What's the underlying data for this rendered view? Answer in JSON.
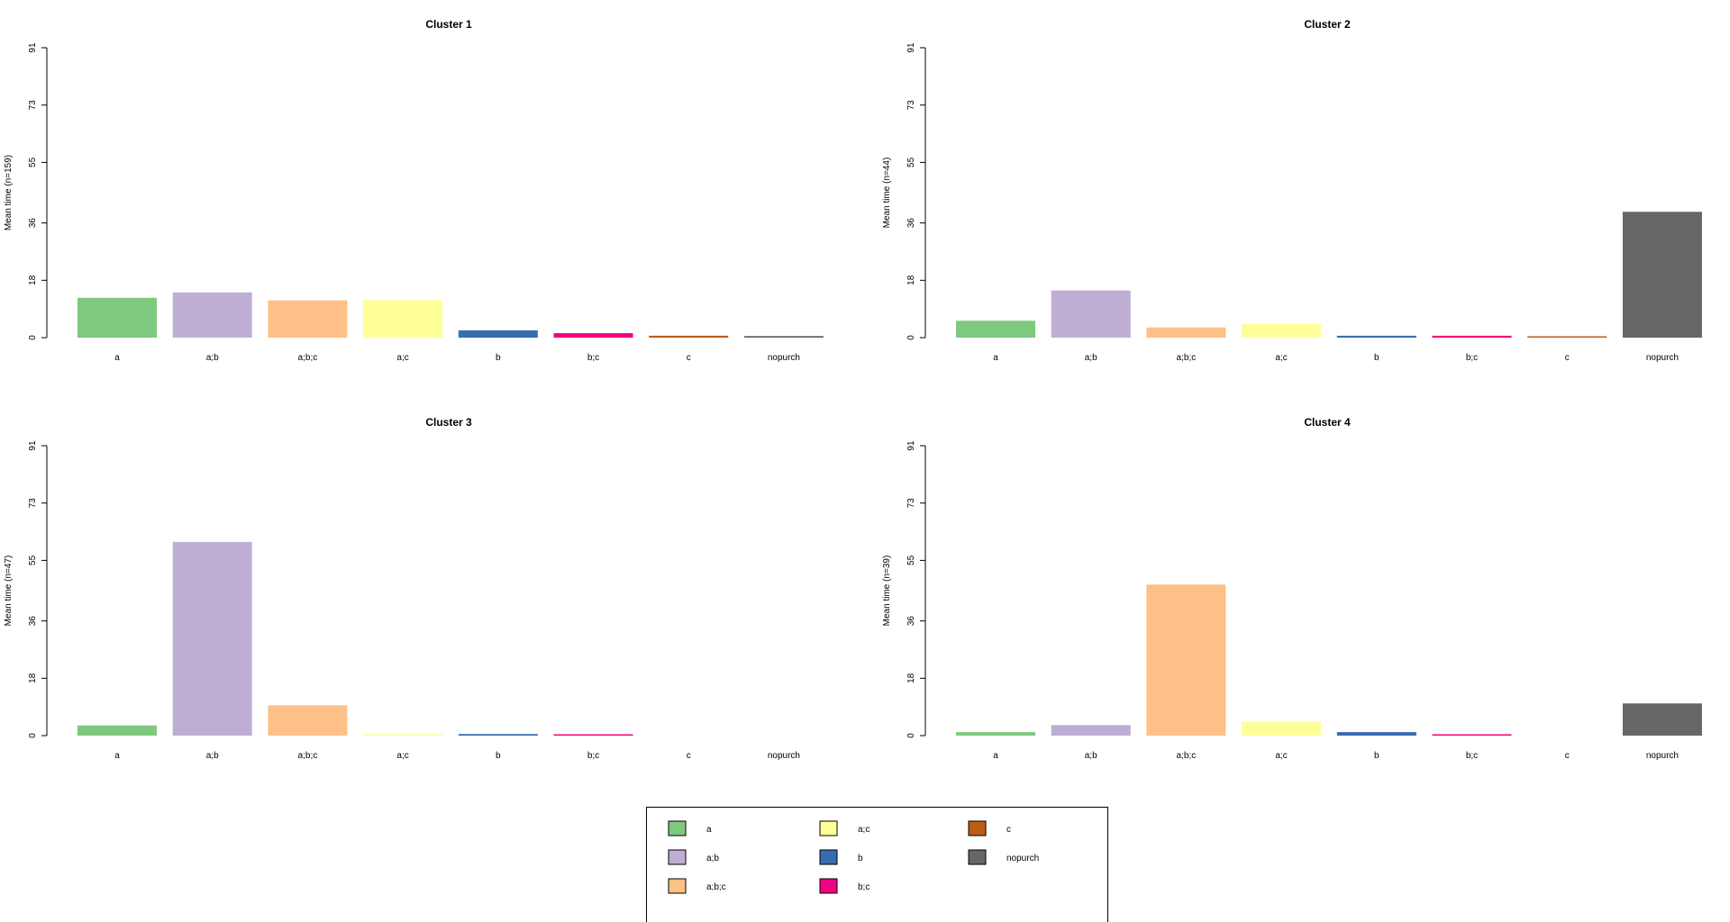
{
  "chart_data": [
    {
      "type": "bar",
      "title": "Cluster 1",
      "ylabel": "Mean time (n=159)",
      "xlabel": "",
      "ylim": [
        0,
        91
      ],
      "yticks": [
        "0",
        "18",
        "36",
        "55",
        "73",
        "91"
      ],
      "categories": [
        "a",
        "a;b",
        "a;b;c",
        "a;c",
        "b",
        "b;c",
        "c",
        "nopurch"
      ],
      "values": [
        12.5,
        14.2,
        11.7,
        11.8,
        2.3,
        1.4,
        0.6,
        0.5
      ]
    },
    {
      "type": "bar",
      "title": "Cluster 2",
      "ylabel": "Mean time (n=44)",
      "xlabel": "",
      "ylim": [
        0,
        91
      ],
      "yticks": [
        "0",
        "18",
        "36",
        "55",
        "73",
        "91"
      ],
      "categories": [
        "a",
        "a;b",
        "a;b;c",
        "a;c",
        "b",
        "b;c",
        "c",
        "nopurch"
      ],
      "values": [
        5.3,
        14.8,
        3.2,
        4.4,
        0.6,
        0.6,
        0.4,
        39.5
      ]
    },
    {
      "type": "bar",
      "title": "Cluster 3",
      "ylabel": "Mean time (n=47)",
      "xlabel": "",
      "ylim": [
        0,
        91
      ],
      "yticks": [
        "0",
        "18",
        "36",
        "55",
        "73",
        "91"
      ],
      "categories": [
        "a",
        "a;b",
        "a;b;c",
        "a;c",
        "b",
        "b;c",
        "c",
        "nopurch"
      ],
      "values": [
        3.2,
        60.8,
        9.5,
        0.4,
        0.5,
        0.4,
        0,
        0
      ]
    },
    {
      "type": "bar",
      "title": "Cluster 4",
      "ylabel": "Mean time (n=39)",
      "xlabel": "",
      "ylim": [
        0,
        91
      ],
      "yticks": [
        "0",
        "18",
        "36",
        "55",
        "73",
        "91"
      ],
      "categories": [
        "a",
        "a;b",
        "a;b;c",
        "a;c",
        "b",
        "b;c",
        "c",
        "nopurch"
      ],
      "values": [
        1.1,
        3.3,
        47.4,
        4.3,
        1.1,
        0.4,
        0,
        10.1
      ]
    }
  ],
  "colors": {
    "a": "#7fc97f",
    "a;b": "#beaed4",
    "a;b;c": "#fdc086",
    "a;c": "#ffff99",
    "b": "#386cb0",
    "b;c": "#f0027f",
    "c": "#bf5b17",
    "nopurch": "#666666"
  },
  "legend": {
    "placement": "bottom-center",
    "items": [
      {
        "label": "a",
        "color": "#7fc97f"
      },
      {
        "label": "a;b",
        "color": "#beaed4"
      },
      {
        "label": "a;b;c",
        "color": "#fdc086"
      },
      {
        "label": "a;c",
        "color": "#ffff99"
      },
      {
        "label": "b",
        "color": "#386cb0"
      },
      {
        "label": "b;c",
        "color": "#f0027f"
      },
      {
        "label": "c",
        "color": "#bf5b17"
      },
      {
        "label": "nopurch",
        "color": "#666666"
      }
    ]
  }
}
